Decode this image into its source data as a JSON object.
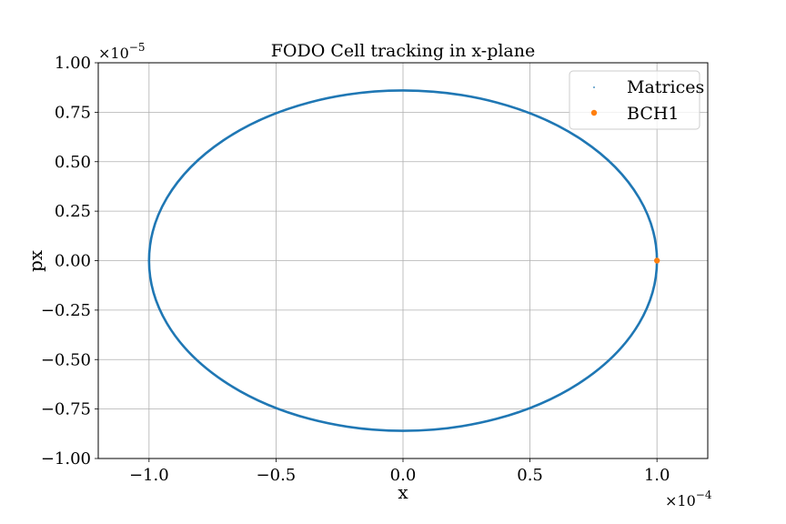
{
  "chart_data": {
    "type": "scatter",
    "title": "FODO Cell tracking in x-plane",
    "xlabel": "x",
    "ylabel": "px",
    "x_offset_text": "×10",
    "x_offset_exp": "−4",
    "y_offset_text": "×10",
    "y_offset_exp": "−5",
    "xlim": [
      -1.2,
      1.2
    ],
    "ylim": [
      -1.0,
      1.0
    ],
    "x_ticks": [
      -1.0,
      -0.5,
      0.0,
      0.5,
      1.0
    ],
    "x_tick_labels": [
      "−1.0",
      "−0.5",
      "0.0",
      "0.5",
      "1.0"
    ],
    "y_ticks": [
      -1.0,
      -0.75,
      -0.5,
      -0.25,
      0.0,
      0.25,
      0.5,
      0.75,
      1.0
    ],
    "y_tick_labels": [
      "−1.00",
      "−0.75",
      "−0.50",
      "−0.25",
      "0.00",
      "0.25",
      "0.50",
      "0.75",
      "1.00"
    ],
    "grid": true,
    "legend_position": "top-right",
    "series": [
      {
        "name": "Matrices",
        "kind": "ellipse",
        "color": "#1f77b4",
        "center": [
          0.0,
          0.0
        ],
        "x_semi_axis": 1.0,
        "y_semi_axis": 0.86
      },
      {
        "name": "BCH1",
        "kind": "point",
        "color": "#ff7f0e",
        "x": [
          1.0
        ],
        "y": [
          0.0
        ]
      }
    ]
  }
}
